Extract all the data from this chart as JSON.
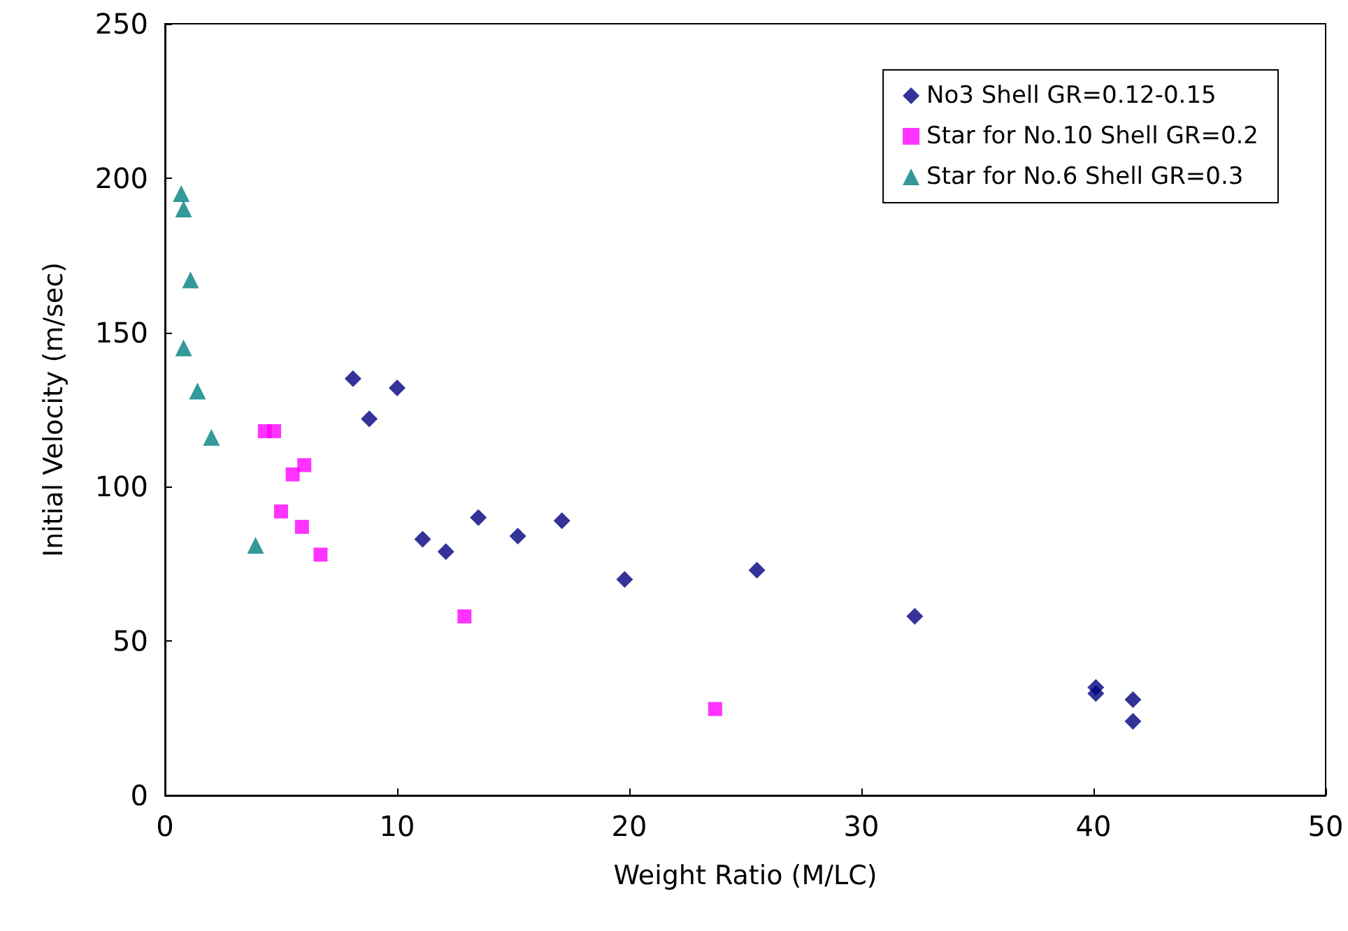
{
  "chart_data": {
    "type": "scatter",
    "xlabel": "Weight Ratio (M/LC)",
    "ylabel": "Initial Velocity (m/sec)",
    "xlim": [
      0,
      50
    ],
    "xticks": [
      0,
      10,
      20,
      30,
      40,
      50
    ],
    "ylim": [
      0,
      250
    ],
    "yticks": [
      0,
      50,
      100,
      150,
      200,
      250
    ],
    "grid": false,
    "legend": "top right",
    "series": [
      {
        "name": "No3 Shell GR=0.12-0.15",
        "color": "#000080",
        "marker": "diamond",
        "x": [
          8.1,
          8.8,
          10.0,
          11.1,
          12.1,
          13.5,
          15.2,
          17.1,
          19.8,
          25.5,
          32.3,
          40.1,
          40.1,
          41.7,
          41.7
        ],
        "values": [
          135,
          122,
          132,
          83,
          79,
          90,
          84,
          89,
          70,
          73,
          58,
          35,
          33,
          31,
          24
        ]
      },
      {
        "name": "Star for No.10 Shell GR=0.2",
        "color": "#ff00ff",
        "marker": "square",
        "x": [
          4.3,
          4.7,
          5.5,
          6.0,
          5.0,
          5.9,
          6.7,
          12.9,
          23.7
        ],
        "values": [
          118,
          118,
          104,
          107,
          92,
          87,
          78,
          58,
          28
        ]
      },
      {
        "name": "Star for No.6 Shell GR=0.3",
        "color": "#008080",
        "marker": "triangle",
        "x": [
          0.7,
          0.8,
          1.1,
          0.8,
          1.4,
          2.0,
          3.9
        ],
        "values": [
          195,
          190,
          167,
          145,
          131,
          116,
          81
        ]
      }
    ]
  }
}
